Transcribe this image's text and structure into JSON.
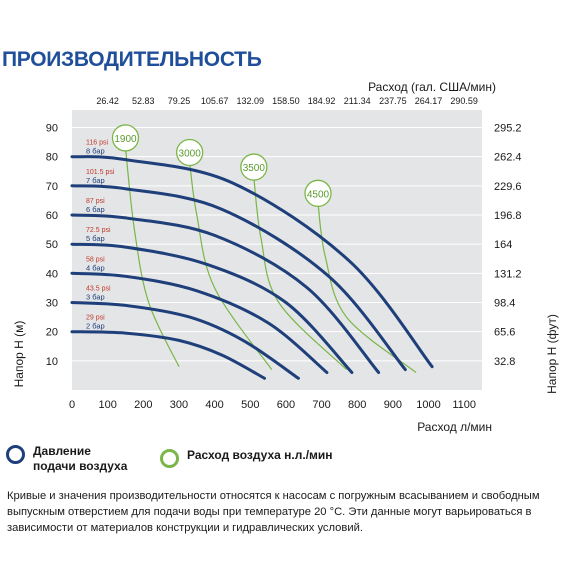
{
  "title": "ПРОИЗВОДИТЕЛЬНОСТЬ",
  "chart_data": {
    "type": "line",
    "top_axis": {
      "label": "Расход (гал. США/мин)",
      "ticks": [
        "26.42",
        "52.83",
        "79.25",
        "105.67",
        "132.09",
        "158.50",
        "184.92",
        "211.34",
        "237.75",
        "264.17",
        "290.59"
      ]
    },
    "x_axis": {
      "label": "Расход л/мин",
      "ticks": [
        "0",
        "100",
        "200",
        "300",
        "400",
        "500",
        "600",
        "700",
        "800",
        "900",
        "1000",
        "1100"
      ],
      "range": [
        0,
        1150
      ]
    },
    "y_left": {
      "label": "Напор H (м)",
      "ticks": [
        "10",
        "20",
        "30",
        "40",
        "50",
        "60",
        "70",
        "80",
        "90"
      ],
      "range": [
        0,
        96
      ]
    },
    "y_right": {
      "label": "Напор H (фут)",
      "ticks": [
        "32.8",
        "65.6",
        "98.4",
        "131.2",
        "164",
        "196.8",
        "229.6",
        "262.4",
        "295.2"
      ]
    },
    "pressure_series": [
      {
        "psi": "29 psi",
        "bar": "2 бар",
        "points": [
          [
            0,
            20
          ],
          [
            150,
            19.5
          ],
          [
            300,
            17
          ],
          [
            420,
            12
          ],
          [
            540,
            4
          ]
        ]
      },
      {
        "psi": "43.5 psi",
        "bar": "3 бар",
        "points": [
          [
            0,
            30
          ],
          [
            150,
            29
          ],
          [
            330,
            25
          ],
          [
            480,
            17
          ],
          [
            635,
            4
          ]
        ]
      },
      {
        "psi": "58 psi",
        "bar": "4 бар",
        "points": [
          [
            0,
            40
          ],
          [
            150,
            39
          ],
          [
            350,
            34
          ],
          [
            550,
            23
          ],
          [
            715,
            6
          ]
        ]
      },
      {
        "psi": "72.5 psi",
        "bar": "5 бар",
        "points": [
          [
            0,
            50
          ],
          [
            150,
            49
          ],
          [
            380,
            43
          ],
          [
            600,
            30
          ],
          [
            785,
            6
          ]
        ]
      },
      {
        "psi": "87 psi",
        "bar": "6 бар",
        "points": [
          [
            0,
            60
          ],
          [
            150,
            59
          ],
          [
            400,
            53
          ],
          [
            660,
            35
          ],
          [
            860,
            6
          ]
        ]
      },
      {
        "psi": "101.5 psi",
        "bar": "7 бар",
        "points": [
          [
            0,
            70
          ],
          [
            150,
            69
          ],
          [
            420,
            62
          ],
          [
            720,
            39
          ],
          [
            935,
            7
          ]
        ]
      },
      {
        "psi": "116 psi",
        "bar": "8 бар",
        "points": [
          [
            0,
            80
          ],
          [
            150,
            79
          ],
          [
            450,
            71
          ],
          [
            780,
            44
          ],
          [
            1010,
            8
          ]
        ]
      }
    ],
    "air_series": [
      {
        "label": "1900",
        "points": [
          [
            150,
            83
          ],
          [
            175,
            55
          ],
          [
            215,
            30
          ],
          [
            300,
            8
          ]
        ]
      },
      {
        "label": "3000",
        "points": [
          [
            330,
            78
          ],
          [
            350,
            60
          ],
          [
            400,
            35
          ],
          [
            560,
            7
          ]
        ]
      },
      {
        "label": "3500",
        "points": [
          [
            510,
            73
          ],
          [
            530,
            52
          ],
          [
            580,
            30
          ],
          [
            770,
            7
          ]
        ]
      },
      {
        "label": "4500",
        "points": [
          [
            690,
            64
          ],
          [
            710,
            46
          ],
          [
            770,
            25
          ],
          [
            965,
            6
          ]
        ]
      }
    ],
    "legend": {
      "pressure": "Давление подачи воздуха",
      "pressure_line1": "Давление",
      "pressure_line2": "подачи воздуха",
      "air": "Расход воздуха н.л./мин"
    },
    "colors": {
      "pressure": "#1e3f7a",
      "air": "#7ab648",
      "psi_text": "#c0392b",
      "bar_text": "#1e3f7a"
    }
  },
  "note": "Кривые и значения производительности относятся к насосам с погружным всасыванием и свободным выпускным отверстием для подачи воды при температуре 20 °C. Эти данные могут варьироваться в зависимости от материалов конструкции и гидравлических условий."
}
